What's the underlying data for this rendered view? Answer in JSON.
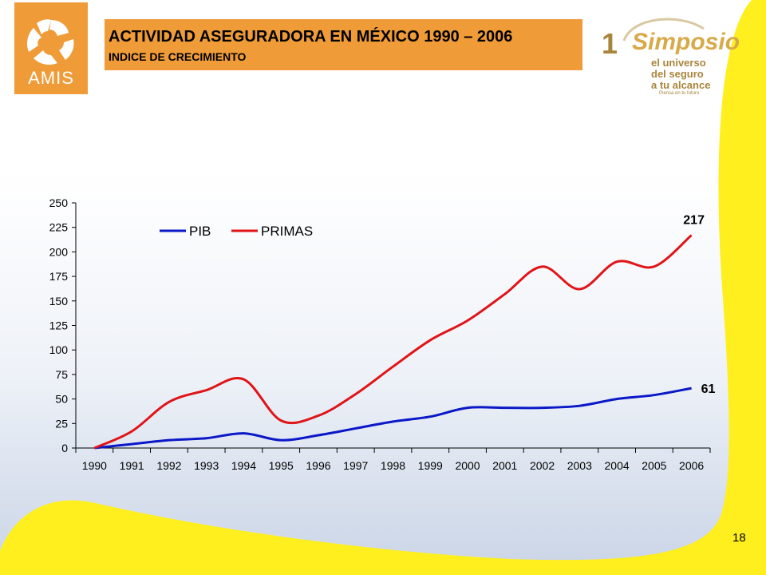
{
  "slide": {
    "logo_text": "AMIS",
    "title": "ACTIVIDAD ASEGURADORA EN MÉXICO 1990 – 2006",
    "subtitle": "INDICE DE CRECIMIENTO",
    "simposio": {
      "number": "1",
      "word": "Simposio",
      "line1": "el universo",
      "line2": "del seguro",
      "line3": "a tu alcance",
      "small": "Piensa en tu futuro"
    },
    "page_number": "18",
    "colors": {
      "orange": "#ef9b38",
      "yellow": "#ffef1e",
      "pib": "#0a18c8",
      "primas": "#e01418"
    }
  },
  "chart_data": {
    "type": "line",
    "title": "",
    "xlabel": "",
    "ylabel": "",
    "x": [
      "1990",
      "1991",
      "1992",
      "1993",
      "1994",
      "1995",
      "1996",
      "1997",
      "1998",
      "1999",
      "2000",
      "2001",
      "2002",
      "2003",
      "2004",
      "2005",
      "2006"
    ],
    "ylim": [
      0,
      250
    ],
    "yticks": [
      "0",
      "25",
      "50",
      "75",
      "100",
      "125",
      "150",
      "175",
      "200",
      "225",
      "250"
    ],
    "grid": false,
    "legend_position": "top-left",
    "series": [
      {
        "name": "PIB",
        "color": "#0a18c8",
        "values": [
          0,
          4,
          8,
          10,
          15,
          8,
          13,
          20,
          27,
          32,
          41,
          41,
          41,
          43,
          50,
          54,
          61
        ],
        "end_label": "61"
      },
      {
        "name": "PRIMAS",
        "color": "#e01418",
        "values": [
          0,
          17,
          47,
          59,
          70,
          28,
          33,
          55,
          83,
          110,
          130,
          157,
          185,
          162,
          190,
          185,
          217
        ],
        "end_label": "217"
      }
    ]
  }
}
